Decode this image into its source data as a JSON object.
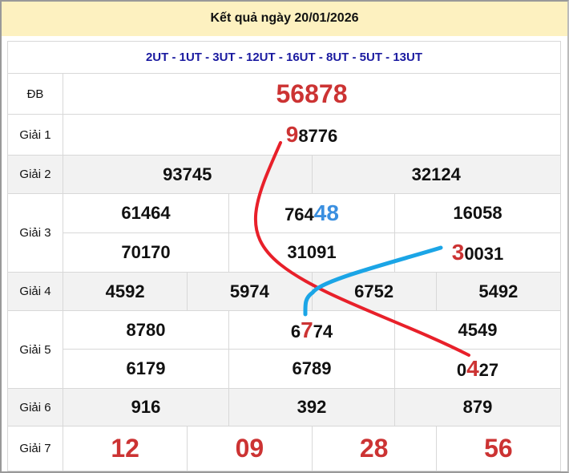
{
  "title": "Kết quả ngày 20/01/2026",
  "subtitle": "2UT - 1UT - 3UT - 12UT - 16UT - 8UT - 5UT - 13UT",
  "labels": {
    "db": "ĐB",
    "g1": "Giải 1",
    "g2": "Giải 2",
    "g3": "Giải 3",
    "g4": "Giải 4",
    "g5": "Giải 5",
    "g6": "Giải 6",
    "g7": "Giải 7"
  },
  "db": "56878",
  "g1": {
    "hl": "9",
    "rest": "8776"
  },
  "g2": [
    "93745",
    "32124"
  ],
  "g3": {
    "r1": [
      "61464",
      {
        "pre": "764",
        "hl": "48"
      },
      "16058"
    ],
    "r2": [
      "70170",
      "31091",
      {
        "hl": "3",
        "rest": "0031"
      }
    ]
  },
  "g4": [
    "4592",
    "5974",
    "6752",
    "5492"
  ],
  "g5": {
    "r1": [
      "8780",
      {
        "pre": "6",
        "hl": "7",
        "rest": "74"
      },
      "4549"
    ],
    "r2": [
      "6179",
      "6789",
      {
        "pre": "0",
        "hl": "4",
        "rest": "27"
      }
    ]
  },
  "g6": [
    "916",
    "392",
    "879"
  ],
  "g7": [
    "12",
    "09",
    "28",
    "56"
  ],
  "colors": {
    "highlight_red": "#cc3333",
    "highlight_blue": "#3a8fe0",
    "line_red": "#e8202a",
    "line_blue": "#1ba5e6",
    "header_bg": "#fdf1c0",
    "subtitle": "#1a1aa0"
  }
}
